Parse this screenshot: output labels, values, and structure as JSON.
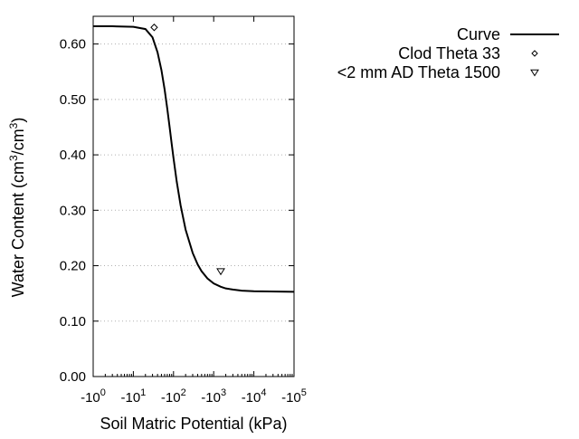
{
  "chart_data": {
    "type": "line",
    "x_scale": "log",
    "xlabel": "Soil Matric Potential (kPa)",
    "ylabel_parts": [
      "Water Content (cm",
      "3",
      "/cm",
      "3",
      ")"
    ],
    "xlim": [
      1,
      100000
    ],
    "ylim": [
      0,
      0.65
    ],
    "x_ticks": [
      {
        "value": 1,
        "prefix": "-10",
        "exp": "0"
      },
      {
        "value": 10,
        "prefix": "-10",
        "exp": "1"
      },
      {
        "value": 100,
        "prefix": "-10",
        "exp": "2"
      },
      {
        "value": 1000,
        "prefix": "-10",
        "exp": "3"
      },
      {
        "value": 10000,
        "prefix": "-10",
        "exp": "4"
      },
      {
        "value": 100000,
        "prefix": "-10",
        "exp": "5"
      }
    ],
    "y_ticks": [
      {
        "value": 0.0,
        "label": "0.00"
      },
      {
        "value": 0.1,
        "label": "0.10"
      },
      {
        "value": 0.2,
        "label": "0.20"
      },
      {
        "value": 0.3,
        "label": "0.30"
      },
      {
        "value": 0.4,
        "label": "0.40"
      },
      {
        "value": 0.5,
        "label": "0.50"
      },
      {
        "value": 0.6,
        "label": "0.60"
      }
    ],
    "grid": "horizontal-dotted",
    "legend_position": "right",
    "series": [
      {
        "name": "Curve",
        "kind": "line",
        "points": [
          [
            1,
            0.632
          ],
          [
            3,
            0.632
          ],
          [
            10,
            0.631
          ],
          [
            20,
            0.627
          ],
          [
            30,
            0.612
          ],
          [
            40,
            0.585
          ],
          [
            50,
            0.553
          ],
          [
            60,
            0.518
          ],
          [
            70,
            0.483
          ],
          [
            80,
            0.45
          ],
          [
            90,
            0.42
          ],
          [
            100,
            0.394
          ],
          [
            120,
            0.352
          ],
          [
            150,
            0.309
          ],
          [
            200,
            0.265
          ],
          [
            300,
            0.223
          ],
          [
            400,
            0.202
          ],
          [
            500,
            0.19
          ],
          [
            700,
            0.177
          ],
          [
            1000,
            0.168
          ],
          [
            1500,
            0.162
          ],
          [
            2000,
            0.159
          ],
          [
            3000,
            0.157
          ],
          [
            5000,
            0.155
          ],
          [
            10000,
            0.154
          ],
          [
            100000,
            0.153
          ]
        ]
      },
      {
        "name": "Clod Theta 33",
        "kind": "marker",
        "marker": "diamond",
        "points": [
          [
            33,
            0.63
          ]
        ]
      },
      {
        "name": "<2 mm AD Theta 1500",
        "kind": "marker",
        "marker": "triangle-down",
        "points": [
          [
            1500,
            0.19
          ]
        ]
      }
    ]
  }
}
